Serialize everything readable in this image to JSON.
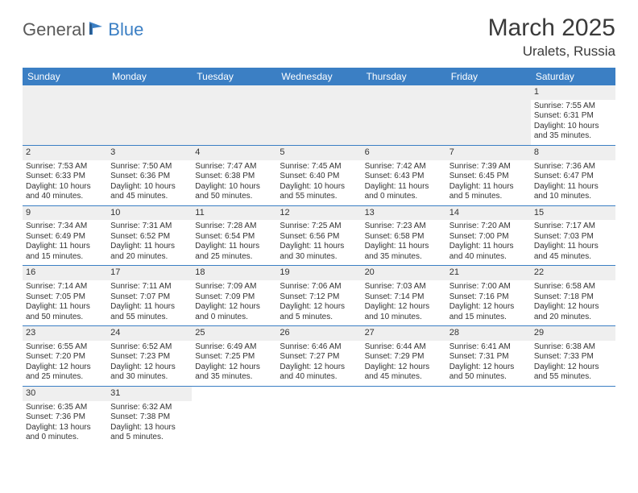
{
  "logo": {
    "text1": "General",
    "text2": "Blue"
  },
  "title": "March 2025",
  "location": "Uralets, Russia",
  "colors": {
    "header_bg": "#3b7fc4",
    "header_fg": "#ffffff",
    "daynum_bg": "#efefef",
    "text": "#333333",
    "rule": "#3b7fc4"
  },
  "weekdays": [
    "Sunday",
    "Monday",
    "Tuesday",
    "Wednesday",
    "Thursday",
    "Friday",
    "Saturday"
  ],
  "first_weekday_index": 6,
  "days": [
    {
      "n": 1,
      "sunrise": "7:55 AM",
      "sunset": "6:31 PM",
      "daylight": "10 hours and 35 minutes."
    },
    {
      "n": 2,
      "sunrise": "7:53 AM",
      "sunset": "6:33 PM",
      "daylight": "10 hours and 40 minutes."
    },
    {
      "n": 3,
      "sunrise": "7:50 AM",
      "sunset": "6:36 PM",
      "daylight": "10 hours and 45 minutes."
    },
    {
      "n": 4,
      "sunrise": "7:47 AM",
      "sunset": "6:38 PM",
      "daylight": "10 hours and 50 minutes."
    },
    {
      "n": 5,
      "sunrise": "7:45 AM",
      "sunset": "6:40 PM",
      "daylight": "10 hours and 55 minutes."
    },
    {
      "n": 6,
      "sunrise": "7:42 AM",
      "sunset": "6:43 PM",
      "daylight": "11 hours and 0 minutes."
    },
    {
      "n": 7,
      "sunrise": "7:39 AM",
      "sunset": "6:45 PM",
      "daylight": "11 hours and 5 minutes."
    },
    {
      "n": 8,
      "sunrise": "7:36 AM",
      "sunset": "6:47 PM",
      "daylight": "11 hours and 10 minutes."
    },
    {
      "n": 9,
      "sunrise": "7:34 AM",
      "sunset": "6:49 PM",
      "daylight": "11 hours and 15 minutes."
    },
    {
      "n": 10,
      "sunrise": "7:31 AM",
      "sunset": "6:52 PM",
      "daylight": "11 hours and 20 minutes."
    },
    {
      "n": 11,
      "sunrise": "7:28 AM",
      "sunset": "6:54 PM",
      "daylight": "11 hours and 25 minutes."
    },
    {
      "n": 12,
      "sunrise": "7:25 AM",
      "sunset": "6:56 PM",
      "daylight": "11 hours and 30 minutes."
    },
    {
      "n": 13,
      "sunrise": "7:23 AM",
      "sunset": "6:58 PM",
      "daylight": "11 hours and 35 minutes."
    },
    {
      "n": 14,
      "sunrise": "7:20 AM",
      "sunset": "7:00 PM",
      "daylight": "11 hours and 40 minutes."
    },
    {
      "n": 15,
      "sunrise": "7:17 AM",
      "sunset": "7:03 PM",
      "daylight": "11 hours and 45 minutes."
    },
    {
      "n": 16,
      "sunrise": "7:14 AM",
      "sunset": "7:05 PM",
      "daylight": "11 hours and 50 minutes."
    },
    {
      "n": 17,
      "sunrise": "7:11 AM",
      "sunset": "7:07 PM",
      "daylight": "11 hours and 55 minutes."
    },
    {
      "n": 18,
      "sunrise": "7:09 AM",
      "sunset": "7:09 PM",
      "daylight": "12 hours and 0 minutes."
    },
    {
      "n": 19,
      "sunrise": "7:06 AM",
      "sunset": "7:12 PM",
      "daylight": "12 hours and 5 minutes."
    },
    {
      "n": 20,
      "sunrise": "7:03 AM",
      "sunset": "7:14 PM",
      "daylight": "12 hours and 10 minutes."
    },
    {
      "n": 21,
      "sunrise": "7:00 AM",
      "sunset": "7:16 PM",
      "daylight": "12 hours and 15 minutes."
    },
    {
      "n": 22,
      "sunrise": "6:58 AM",
      "sunset": "7:18 PM",
      "daylight": "12 hours and 20 minutes."
    },
    {
      "n": 23,
      "sunrise": "6:55 AM",
      "sunset": "7:20 PM",
      "daylight": "12 hours and 25 minutes."
    },
    {
      "n": 24,
      "sunrise": "6:52 AM",
      "sunset": "7:23 PM",
      "daylight": "12 hours and 30 minutes."
    },
    {
      "n": 25,
      "sunrise": "6:49 AM",
      "sunset": "7:25 PM",
      "daylight": "12 hours and 35 minutes."
    },
    {
      "n": 26,
      "sunrise": "6:46 AM",
      "sunset": "7:27 PM",
      "daylight": "12 hours and 40 minutes."
    },
    {
      "n": 27,
      "sunrise": "6:44 AM",
      "sunset": "7:29 PM",
      "daylight": "12 hours and 45 minutes."
    },
    {
      "n": 28,
      "sunrise": "6:41 AM",
      "sunset": "7:31 PM",
      "daylight": "12 hours and 50 minutes."
    },
    {
      "n": 29,
      "sunrise": "6:38 AM",
      "sunset": "7:33 PM",
      "daylight": "12 hours and 55 minutes."
    },
    {
      "n": 30,
      "sunrise": "6:35 AM",
      "sunset": "7:36 PM",
      "daylight": "13 hours and 0 minutes."
    },
    {
      "n": 31,
      "sunrise": "6:32 AM",
      "sunset": "7:38 PM",
      "daylight": "13 hours and 5 minutes."
    }
  ],
  "labels": {
    "sunrise": "Sunrise:",
    "sunset": "Sunset:",
    "daylight": "Daylight:"
  }
}
